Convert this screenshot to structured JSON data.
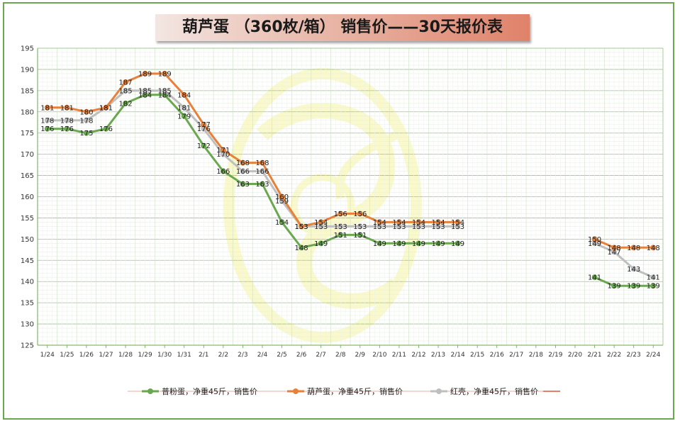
{
  "title": "葫芦蛋 （360枚/箱） 销售价——30天报价表",
  "chart_data": {
    "type": "line",
    "x": [
      "1/24",
      "1/25",
      "1/26",
      "1/27",
      "1/28",
      "1/29",
      "1/30",
      "1/31",
      "2/1",
      "2/2",
      "2/3",
      "2/4",
      "2/5",
      "2/6",
      "2/7",
      "2/8",
      "2/9",
      "2/10",
      "2/11",
      "2/12",
      "2/13",
      "2/14",
      "2/15",
      "2/16",
      "2/17",
      "2/18",
      "2/19",
      "2/20",
      "2/21",
      "2/22",
      "2/23",
      "2/24"
    ],
    "ylim": [
      125,
      195
    ],
    "yticks": [
      125,
      130,
      135,
      140,
      145,
      150,
      155,
      160,
      165,
      170,
      175,
      180,
      185,
      190,
      195
    ],
    "grid": true,
    "legend": "bottom",
    "series": [
      {
        "name": "普粉蛋，净重45斤，销售价",
        "color": "#6aa84f",
        "values": [
          176,
          176,
          175,
          176,
          182,
          184,
          184,
          179,
          172,
          166,
          163,
          163,
          154,
          148,
          149,
          151,
          151,
          149,
          149,
          149,
          149,
          149,
          null,
          null,
          null,
          null,
          null,
          null,
          141,
          139,
          139,
          139
        ]
      },
      {
        "name": "葫芦蛋，净重45斤，销售价",
        "color": "#e8803a",
        "values": [
          181,
          181,
          180,
          181,
          187,
          189,
          189,
          184,
          177,
          171,
          168,
          168,
          160,
          153,
          154,
          156,
          156,
          154,
          154,
          154,
          154,
          154,
          null,
          null,
          null,
          null,
          null,
          null,
          150,
          148,
          148,
          148
        ]
      },
      {
        "name": "红壳，净重45斤，销售价",
        "color": "#bfbfbf",
        "values": [
          178,
          178,
          178,
          181,
          185,
          185,
          185,
          181,
          176,
          170,
          166,
          166,
          159,
          153,
          153,
          153,
          153,
          153,
          153,
          153,
          153,
          153,
          null,
          null,
          null,
          null,
          null,
          null,
          149,
          147,
          143,
          141
        ]
      }
    ]
  }
}
